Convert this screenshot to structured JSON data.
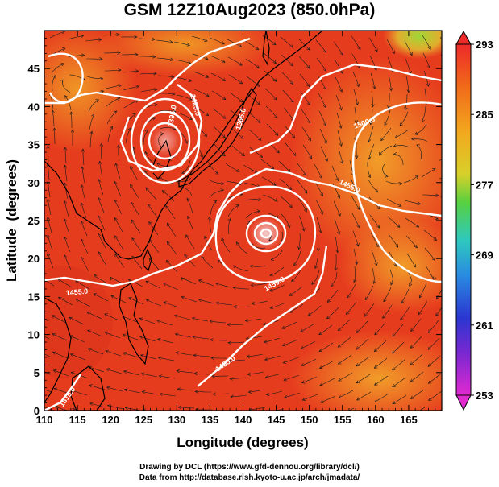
{
  "chart_data": {
    "type": "heatmap",
    "title": "GSM 12Z10Aug2023 (850.0hPa)",
    "xlabel": "Longitude (degrees)",
    "ylabel": "Latitude  (degrees)",
    "xlim": [
      110,
      170
    ],
    "ylim": [
      0,
      50
    ],
    "x_ticks": [
      "110",
      "115",
      "120",
      "125",
      "130",
      "135",
      "140",
      "145",
      "150",
      "155",
      "160",
      "165"
    ],
    "y_ticks": [
      "0",
      "5",
      "10",
      "15",
      "20",
      "25",
      "30",
      "35",
      "40",
      "45"
    ],
    "colorbar": {
      "min": 253,
      "max": 293,
      "tick_labels": [
        "293",
        "285",
        "277",
        "269",
        "261",
        "253"
      ],
      "colors": [
        "#ee2a2a",
        "#f07a1a",
        "#f2b01e",
        "#b8d834",
        "#3ec848",
        "#2ec8c8",
        "#2a86e0",
        "#2a3ad0",
        "#7a2ad0",
        "#d22ad0"
      ]
    },
    "contour_labels": [
      "1395.0",
      "1425.0",
      "1365.0",
      "1455.0",
      "1500.0",
      "1455.0",
      "1455.0",
      "1485.0",
      "1515.0"
    ],
    "field_colors": {
      "warm": "#e63a1e",
      "orange": "#f08a22",
      "yellow": "#f0c030",
      "green": "#9bd838",
      "contour": "#ffffff",
      "streamline": "#1a1a1a",
      "coast": "#000000"
    }
  },
  "credits": {
    "line1": "Drawing by DCL (https://www.gfd-dennou.org/library/dcl/)",
    "line2": "Data from http://database.rish.kyoto-u.ac.jp/arch/jmadata/"
  }
}
